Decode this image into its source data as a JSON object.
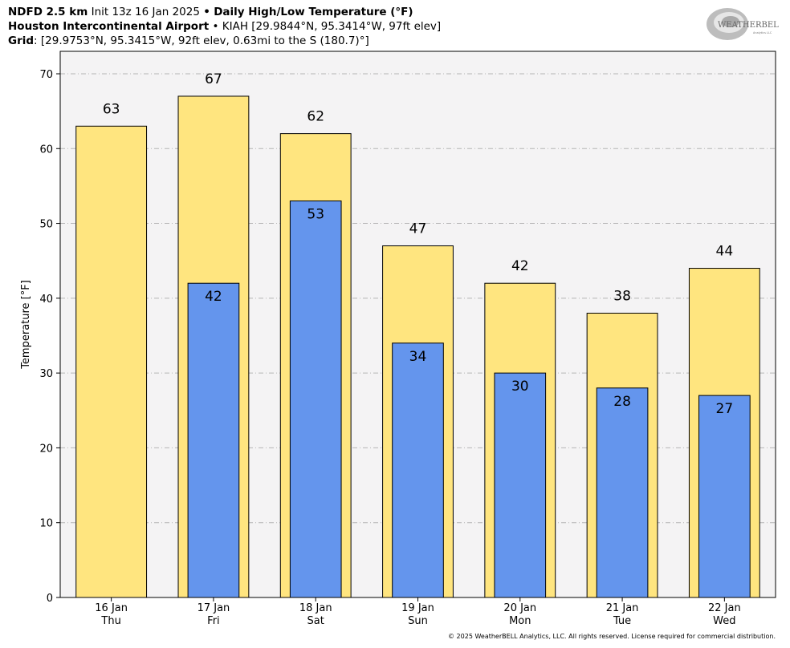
{
  "header": {
    "line1_bold_a": "NDFD 2.5 km",
    "line1_plain": "Init 13z 16 Jan 2025",
    "line1_sep": "•",
    "line1_bold_b": "Daily High/Low Temperature (°F)",
    "line2_bold": "Houston Intercontinental Airport",
    "line2_sep": "•",
    "line2_plain": "KIAH [29.9844°N, 95.3414°W, 97ft elev]",
    "line3_bold": "Grid",
    "line3_plain": ": [29.9753°N, 95.3415°W, 92ft elev, 0.63mi to the S (180.7)°]"
  },
  "logo": {
    "text": "WEATHERBELL",
    "sub": "Analytics LLC"
  },
  "chart_data": {
    "type": "bar",
    "categories": [
      "16 Jan",
      "17 Jan",
      "18 Jan",
      "19 Jan",
      "20 Jan",
      "21 Jan",
      "22 Jan"
    ],
    "category_days": [
      "Thu",
      "Fri",
      "Sat",
      "Sun",
      "Mon",
      "Tue",
      "Wed"
    ],
    "series": [
      {
        "name": "High",
        "values": [
          63,
          67,
          62,
          47,
          42,
          38,
          44
        ],
        "color": "#FFE57F"
      },
      {
        "name": "Low",
        "values": [
          null,
          42,
          53,
          34,
          30,
          28,
          27
        ],
        "color": "#6495ED"
      }
    ],
    "ylabel": "Temperature [°F]",
    "ylim": [
      0,
      73
    ],
    "yticks": [
      0,
      10,
      20,
      30,
      40,
      50,
      60,
      70
    ],
    "grid": true,
    "plot_background": "#F4F3F4"
  },
  "footer": {
    "copyright": "© 2025 WeatherBELL Analytics, LLC. All rights reserved. License required for commercial distribution."
  }
}
